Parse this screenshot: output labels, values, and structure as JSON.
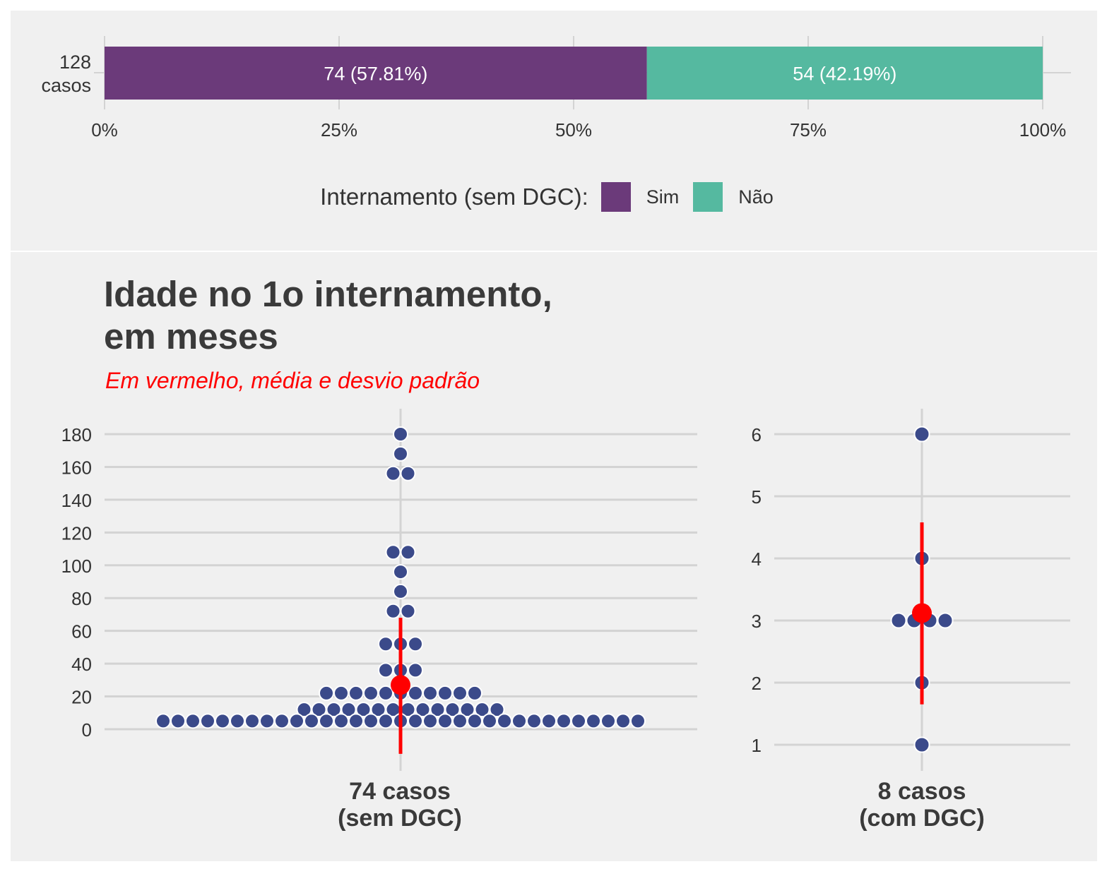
{
  "colors": {
    "sim": "#6b3a7a",
    "nao": "#55b9a0",
    "points": "#3b4a8a",
    "mean": "#ff0000",
    "grid": "#d3d3d3",
    "panel_bg": "#f0f0f0"
  },
  "chart_data": [
    {
      "type": "bar",
      "orientation": "horizontal-stacked",
      "category_label": [
        "128",
        "casos"
      ],
      "segments": [
        {
          "name": "Sim",
          "value": 57.81,
          "count": 74,
          "label": "74 (57.81%)"
        },
        {
          "name": "Não",
          "value": 42.19,
          "count": 54,
          "label": "54 (42.19%)"
        }
      ],
      "xlim": [
        0,
        100
      ],
      "ticks": [
        0,
        25,
        50,
        75,
        100
      ],
      "tick_labels": [
        "0%",
        "25%",
        "50%",
        "75%",
        "100%"
      ],
      "legend": {
        "title": "Internamento (sem DGC):",
        "labels": [
          "Sim",
          "Não"
        ],
        "position": "bottom"
      }
    },
    {
      "type": "scatter",
      "subtype": "beeswarm",
      "title": [
        "Idade no 1o internamento,",
        "em meses"
      ],
      "subtitle": "Em vermelho, média e desvio padrão",
      "panels": [
        {
          "name": "sem DGC",
          "xlabel": [
            "74 casos",
            "(sem DGC)"
          ],
          "ylim": [
            -15,
            187
          ],
          "yticks": [
            0,
            20,
            40,
            60,
            80,
            100,
            120,
            140,
            160,
            180
          ],
          "mean": 27,
          "sd_range": [
            -15,
            68
          ],
          "groups": [
            {
              "value": 180,
              "n": 1
            },
            {
              "value": 168,
              "n": 1
            },
            {
              "value": 156,
              "n": 2
            },
            {
              "value": 108,
              "n": 2
            },
            {
              "value": 96,
              "n": 1
            },
            {
              "value": 84,
              "n": 1
            },
            {
              "value": 72,
              "n": 2
            },
            {
              "value": 52,
              "n": 3
            },
            {
              "value": 36,
              "n": 3
            },
            {
              "value": 22,
              "n": 11
            },
            {
              "value": 12,
              "n": 14
            },
            {
              "value": 5,
              "n": 33
            }
          ]
        },
        {
          "name": "com DGC",
          "xlabel": [
            "8 casos",
            "(com DGC)"
          ],
          "ylim": [
            0.6,
            6.4
          ],
          "yticks": [
            1,
            2,
            3,
            4,
            5,
            6
          ],
          "mean": 3.12,
          "sd_range": [
            1.65,
            4.58
          ],
          "groups": [
            {
              "value": 6,
              "n": 1
            },
            {
              "value": 4,
              "n": 1
            },
            {
              "value": 3,
              "n": 4
            },
            {
              "value": 2,
              "n": 1
            },
            {
              "value": 1,
              "n": 1
            }
          ]
        }
      ]
    }
  ]
}
